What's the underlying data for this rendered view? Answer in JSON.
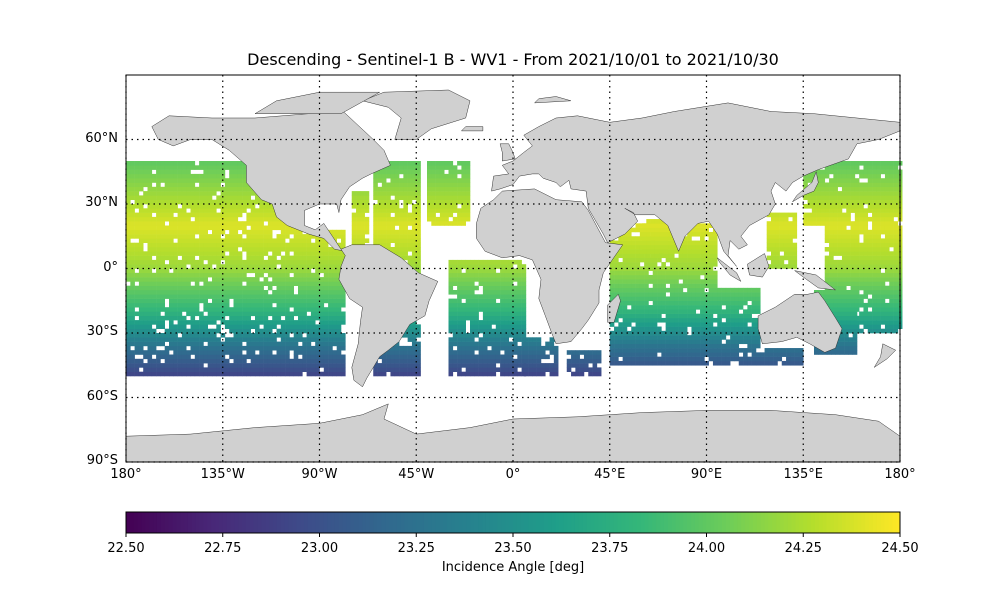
{
  "title": "Descending - Sentinel-1 B - WV1 - From 2021/10/01 to 2021/10/30",
  "map": {
    "lon_range": [
      -180,
      180
    ],
    "lat_range": [
      -90,
      90
    ],
    "lon_ticks": [
      {
        "value": -180,
        "label": "180°"
      },
      {
        "value": -135,
        "label": "135°W"
      },
      {
        "value": -90,
        "label": "90°W"
      },
      {
        "value": -45,
        "label": "45°W"
      },
      {
        "value": 0,
        "label": "0°"
      },
      {
        "value": 45,
        "label": "45°E"
      },
      {
        "value": 90,
        "label": "90°E"
      },
      {
        "value": 135,
        "label": "135°E"
      },
      {
        "value": 180,
        "label": "180°"
      }
    ],
    "lat_ticks": [
      {
        "value": 60,
        "label": "60°N"
      },
      {
        "value": 30,
        "label": "30°N"
      },
      {
        "value": 0,
        "label": "0°"
      },
      {
        "value": -30,
        "label": "30°S"
      },
      {
        "value": -60,
        "label": "60°S"
      },
      {
        "value": -90,
        "label": "90°S"
      }
    ],
    "grid": "dotted",
    "land_color": "#d0d0d0",
    "coast_color": "#333333",
    "ocean_color": "#ffffff"
  },
  "chart_data": {
    "type": "heatmap",
    "variable": "Incidence Angle [deg]",
    "colormap": "viridis",
    "vmin": 22.5,
    "vmax": 24.5,
    "data_lat_range": [
      -50,
      50
    ],
    "gradient_note_values": [
      {
        "lat": 50,
        "value": 24.0
      },
      {
        "lat": 20,
        "value": 24.4
      },
      {
        "lat": 0,
        "value": 24.2
      },
      {
        "lat": -20,
        "value": 23.8
      },
      {
        "lat": -35,
        "value": 23.3
      },
      {
        "lat": -50,
        "value": 22.9
      }
    ]
  },
  "colorbar": {
    "label": "Incidence Angle [deg]",
    "ticks": [
      "22.50",
      "22.75",
      "23.00",
      "23.25",
      "23.50",
      "23.75",
      "24.00",
      "24.25",
      "24.50"
    ]
  }
}
